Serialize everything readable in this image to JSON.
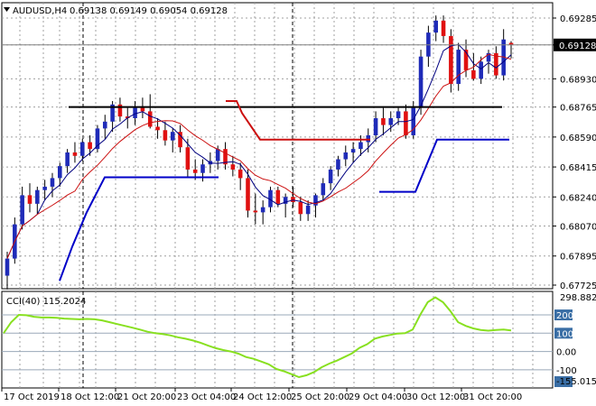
{
  "header": {
    "symbol": "AUDUSD,H4",
    "ohlc": "0.69138 0.69149 0.69054 0.69128"
  },
  "indicator": {
    "label": "CCI(40) 115.2024"
  },
  "colors": {
    "bull_candle": "#1f2bb8",
    "bear_candle": "#e01010",
    "wick": "#000000",
    "fast_ma": "#000080",
    "slow_ma": "#cc1010",
    "support_line": "#0000c8",
    "resistance_line": "#000000",
    "cci_line": "#88e020",
    "grid": "#a0a0a0",
    "price_tag_bg": "#000000"
  },
  "chart_data": {
    "type": "candlestick",
    "instrument": "AUDUSD",
    "timeframe": "H4",
    "price_axis": {
      "ticks": [
        "0.69285",
        "0.69128",
        "0.68930",
        "0.68765",
        "0.68590",
        "0.68415",
        "0.68240",
        "0.68070",
        "0.67895",
        "0.67725"
      ],
      "ylim": [
        0.67725,
        0.69285
      ],
      "current_price": "0.69128"
    },
    "time_axis": {
      "labels": [
        "17 Oct 2019",
        "18 Oct 12:00",
        "21 Oct 20:00",
        "23 Oct 04:00",
        "24 Oct 12:00",
        "25 Oct 20:00",
        "29 Oct 04:00",
        "30 Oct 12:00",
        "31 Oct 20:00"
      ]
    },
    "candles": [
      [
        0.6778,
        0.6792,
        0.677,
        0.6788
      ],
      [
        0.6788,
        0.6812,
        0.6785,
        0.6808
      ],
      [
        0.6808,
        0.683,
        0.6805,
        0.6825
      ],
      [
        0.6825,
        0.6832,
        0.6815,
        0.682
      ],
      [
        0.682,
        0.683,
        0.6814,
        0.6828
      ],
      [
        0.6828,
        0.6834,
        0.6822,
        0.683
      ],
      [
        0.683,
        0.6838,
        0.6824,
        0.6835
      ],
      [
        0.6835,
        0.6844,
        0.683,
        0.6842
      ],
      [
        0.6842,
        0.6852,
        0.6838,
        0.685
      ],
      [
        0.685,
        0.6856,
        0.6844,
        0.6848
      ],
      [
        0.6848,
        0.6858,
        0.6845,
        0.6856
      ],
      [
        0.6856,
        0.686,
        0.6848,
        0.6852
      ],
      [
        0.6852,
        0.6866,
        0.685,
        0.6864
      ],
      [
        0.6864,
        0.6872,
        0.6858,
        0.6868
      ],
      [
        0.6868,
        0.688,
        0.6862,
        0.6878
      ],
      [
        0.6878,
        0.6882,
        0.6868,
        0.6871
      ],
      [
        0.6871,
        0.6876,
        0.6864,
        0.687
      ],
      [
        0.687,
        0.688,
        0.6866,
        0.6876
      ],
      [
        0.6876,
        0.6882,
        0.687,
        0.6874
      ],
      [
        0.6874,
        0.6884,
        0.6864,
        0.6865
      ],
      [
        0.6865,
        0.687,
        0.6858,
        0.6863
      ],
      [
        0.6863,
        0.6868,
        0.6854,
        0.6857
      ],
      [
        0.6857,
        0.6864,
        0.685,
        0.6862
      ],
      [
        0.6862,
        0.6866,
        0.685,
        0.6853
      ],
      [
        0.6853,
        0.6858,
        0.6836,
        0.684
      ],
      [
        0.684,
        0.6846,
        0.6834,
        0.6838
      ],
      [
        0.6838,
        0.6846,
        0.6833,
        0.6843
      ],
      [
        0.6843,
        0.685,
        0.6838,
        0.6845
      ],
      [
        0.6845,
        0.6854,
        0.684,
        0.6852
      ],
      [
        0.6852,
        0.6856,
        0.684,
        0.6843
      ],
      [
        0.6843,
        0.6848,
        0.6836,
        0.684
      ],
      [
        0.684,
        0.6844,
        0.6828,
        0.6835
      ],
      [
        0.6835,
        0.684,
        0.6812,
        0.6816
      ],
      [
        0.6816,
        0.6826,
        0.6808,
        0.6815
      ],
      [
        0.6815,
        0.6822,
        0.6808,
        0.6818
      ],
      [
        0.6818,
        0.683,
        0.6815,
        0.6828
      ],
      [
        0.6828,
        0.683,
        0.6818,
        0.682
      ],
      [
        0.682,
        0.6826,
        0.6812,
        0.6824
      ],
      [
        0.6824,
        0.683,
        0.6818,
        0.6821
      ],
      [
        0.6821,
        0.6824,
        0.681,
        0.6814
      ],
      [
        0.6814,
        0.6822,
        0.681,
        0.6819
      ],
      [
        0.6819,
        0.6826,
        0.6812,
        0.6825
      ],
      [
        0.6825,
        0.6835,
        0.6822,
        0.6832
      ],
      [
        0.6832,
        0.6842,
        0.6828,
        0.684
      ],
      [
        0.684,
        0.6848,
        0.6836,
        0.6846
      ],
      [
        0.6846,
        0.6854,
        0.6842,
        0.685
      ],
      [
        0.685,
        0.6856,
        0.6844,
        0.6852
      ],
      [
        0.6852,
        0.686,
        0.6848,
        0.6856
      ],
      [
        0.6856,
        0.6864,
        0.685,
        0.686
      ],
      [
        0.686,
        0.6874,
        0.6856,
        0.687
      ],
      [
        0.687,
        0.6876,
        0.686,
        0.6866
      ],
      [
        0.6866,
        0.6874,
        0.6862,
        0.687
      ],
      [
        0.687,
        0.6876,
        0.6866,
        0.6874
      ],
      [
        0.6874,
        0.6878,
        0.6858,
        0.686
      ],
      [
        0.686,
        0.688,
        0.6858,
        0.6876
      ],
      [
        0.6876,
        0.691,
        0.6872,
        0.6906
      ],
      [
        0.6906,
        0.6924,
        0.69,
        0.692
      ],
      [
        0.692,
        0.693,
        0.6915,
        0.6927
      ],
      [
        0.6927,
        0.693,
        0.6914,
        0.6918
      ],
      [
        0.6918,
        0.6922,
        0.6885,
        0.689
      ],
      [
        0.689,
        0.6914,
        0.6886,
        0.691
      ],
      [
        0.691,
        0.6916,
        0.6894,
        0.6898
      ],
      [
        0.6898,
        0.6908,
        0.6892,
        0.6893
      ],
      [
        0.6893,
        0.6906,
        0.689,
        0.6903
      ],
      [
        0.6903,
        0.691,
        0.6896,
        0.6908
      ],
      [
        0.6908,
        0.6912,
        0.6893,
        0.6895
      ],
      [
        0.6895,
        0.6922,
        0.6892,
        0.6916
      ],
      [
        0.6914,
        0.6915,
        0.6905,
        0.6913
      ]
    ],
    "lines": {
      "resistance_level": 0.68765,
      "support_upper_level": 0.68575,
      "support_lower_level": 0.68355,
      "support_second_level": 0.6827
    },
    "cci": {
      "label": "CCI(40)",
      "last_value": 115.2024,
      "scale_top_label": "298.8828",
      "scale_bottom_label": "-155.0156",
      "ylim": [
        -155.0156,
        298.8828
      ],
      "levels": [
        "200",
        "100",
        "0.00",
        "-100"
      ],
      "highlighted_levels": [
        "200",
        "-155"
      ],
      "values": [
        100,
        160,
        200,
        198,
        190,
        186,
        186,
        184,
        180,
        178,
        176,
        178,
        176,
        170,
        160,
        150,
        140,
        130,
        120,
        108,
        100,
        95,
        88,
        78,
        70,
        60,
        48,
        32,
        18,
        8,
        0,
        -12,
        -30,
        -40,
        -55,
        -70,
        -96,
        -108,
        -124,
        -140,
        -130,
        -112,
        -86,
        -66,
        -50,
        -30,
        -10,
        20,
        40,
        70,
        82,
        90,
        98,
        100,
        120,
        200,
        270,
        296,
        270,
        220,
        160,
        140,
        126,
        118,
        114,
        118,
        120,
        115
      ]
    }
  }
}
